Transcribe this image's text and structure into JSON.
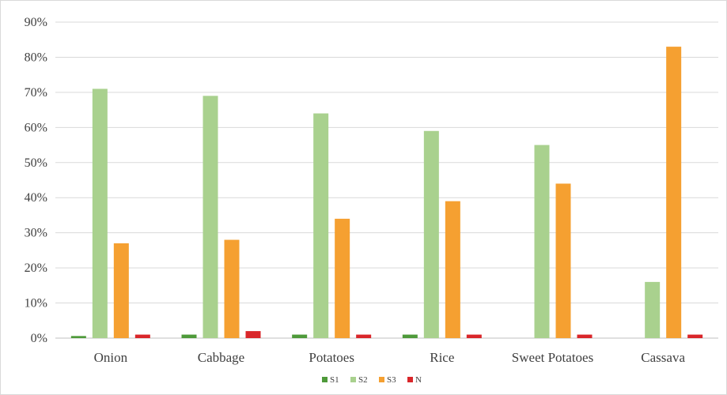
{
  "chart_data": {
    "type": "bar",
    "title": "",
    "xlabel": "",
    "ylabel": "",
    "ylim": [
      0,
      90
    ],
    "y_unit": "%",
    "y_ticks": [
      "0%",
      "10%",
      "20%",
      "30%",
      "40%",
      "50%",
      "60%",
      "70%",
      "80%",
      "90%"
    ],
    "grid": true,
    "legend_position": "bottom",
    "categories": [
      "Onion",
      "Cabbage",
      "Potatoes",
      "Rice",
      "Sweet Potatoes",
      "Cassava"
    ],
    "series": [
      {
        "name": "S1",
        "color": "#4e9a3a",
        "values": [
          0.6,
          1,
          1,
          1,
          0,
          0
        ]
      },
      {
        "name": "S2",
        "color": "#a9d18e",
        "values": [
          71,
          69,
          64,
          59,
          55,
          16
        ]
      },
      {
        "name": "S3",
        "color": "#f5a031",
        "values": [
          27,
          28,
          34,
          39,
          44,
          83
        ]
      },
      {
        "name": "N",
        "color": "#d9262a",
        "values": [
          1,
          2,
          1,
          1,
          1,
          1
        ]
      }
    ]
  }
}
